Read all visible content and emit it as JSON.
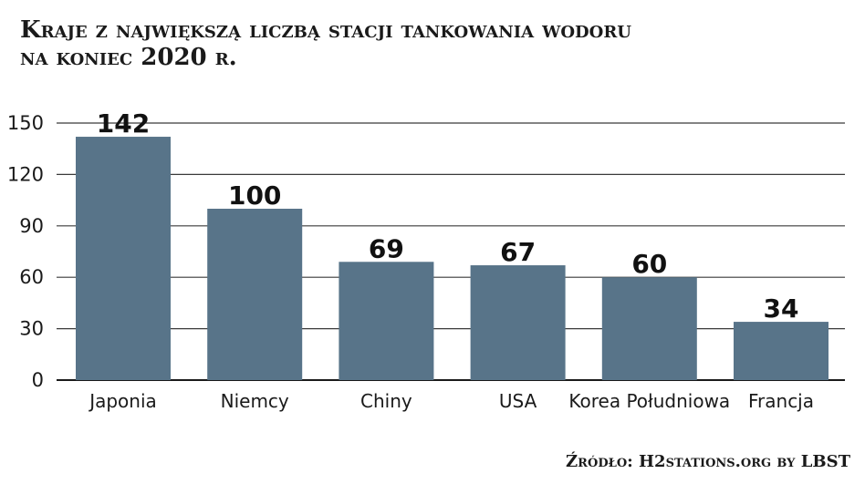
{
  "header": {
    "title_line1": "Kraje z największą liczbą stacji tankowania wodoru",
    "title_line2": "na koniec 2020 r."
  },
  "footer": {
    "source": "Źródło: H2stations.org by LBST"
  },
  "colors": {
    "bar": "#587489",
    "grid": "#3a3a3a",
    "axis": "#1a1a1a"
  },
  "chart_data": {
    "type": "bar",
    "title": "Kraje z największą liczbą stacji tankowania wodoru na koniec 2020 r.",
    "categories": [
      "Japonia",
      "Niemcy",
      "Chiny",
      "USA",
      "Korea Południowa",
      "Francja"
    ],
    "values": [
      142,
      100,
      69,
      67,
      60,
      34
    ],
    "value_labels": [
      "142",
      "100",
      "69",
      "67",
      "60",
      "34"
    ],
    "yticks": [
      0,
      30,
      60,
      90,
      120,
      150
    ],
    "ylim": [
      0,
      150
    ],
    "grid": true,
    "legend": "none",
    "xlabel": "",
    "ylabel": ""
  }
}
